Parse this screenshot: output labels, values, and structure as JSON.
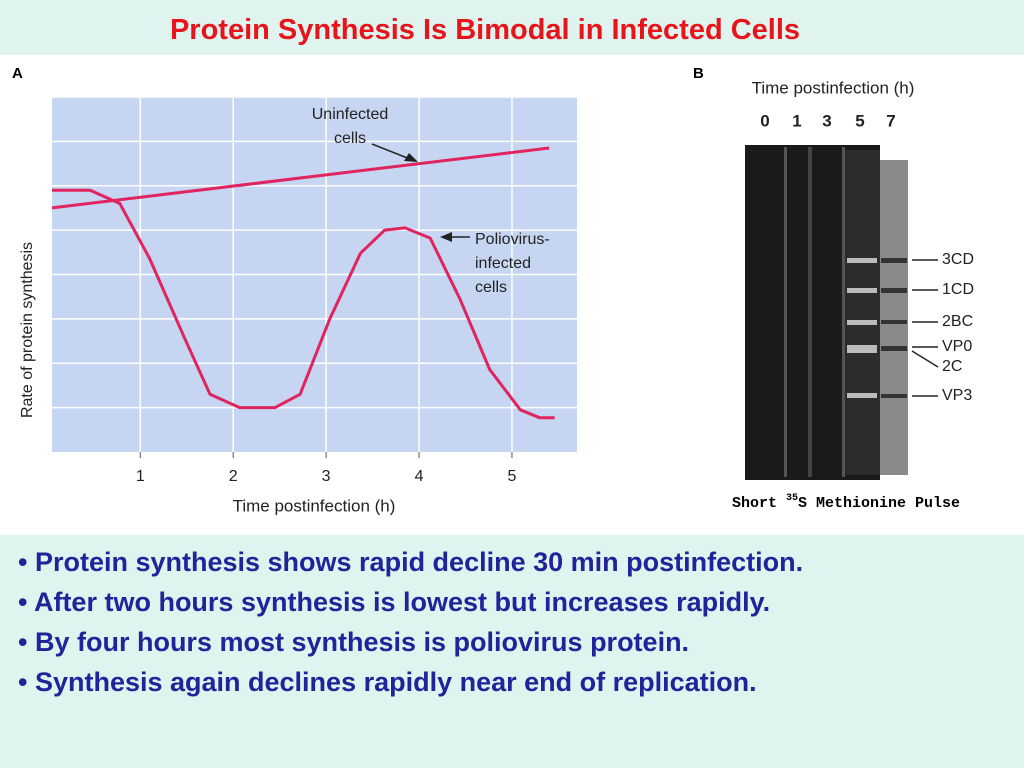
{
  "title": "Protein Synthesis Is Bimodal in Infected Cells",
  "panel_a_label": "A",
  "chart_data": {
    "type": "line",
    "xlabel": "Time postinfection (h)",
    "ylabel": "Rate of protein synthesis",
    "xlim": [
      0.05,
      5.7
    ],
    "ylim": [
      0,
      8
    ],
    "xticks": [
      1,
      2,
      3,
      4,
      5
    ],
    "ygrid": [
      1,
      2,
      3,
      4,
      5,
      6,
      7,
      8
    ],
    "grid": true,
    "series": [
      {
        "name": "Uninfected cells",
        "color": "#e0245e",
        "x": [
          0.05,
          5.4
        ],
        "values": [
          5.5,
          6.85
        ]
      },
      {
        "name": "Poliovirus-infected cells",
        "color": "#e0245e",
        "x": [
          0.05,
          0.46,
          0.78,
          1.1,
          1.48,
          1.75,
          2.07,
          2.45,
          2.72,
          3.04,
          3.37,
          3.63,
          3.85,
          4.12,
          4.44,
          4.76,
          5.09,
          5.3,
          5.46
        ],
        "values": [
          5.9,
          5.9,
          5.6,
          4.36,
          2.55,
          1.3,
          1.0,
          1.0,
          1.3,
          3.0,
          4.48,
          5.0,
          5.05,
          4.82,
          3.45,
          1.86,
          0.95,
          0.77,
          0.77
        ]
      }
    ],
    "annotations": [
      [
        "Uninfected",
        "cells"
      ],
      [
        "Poliovirus-",
        "infected",
        "cells"
      ]
    ]
  },
  "panel_b": {
    "label": "B",
    "axis_title": "Time postinfection (h)",
    "lanes": [
      "0",
      "1",
      "3",
      "5",
      "7"
    ],
    "bands": [
      "3CD",
      "1CD",
      "2BC",
      "VP0",
      "2C",
      "VP3"
    ],
    "caption": [
      "Short ",
      "35",
      "S Methionine Pulse"
    ]
  },
  "bullets": [
    "• Protein synthesis shows rapid decline 30 min postinfection.",
    "• After two hours synthesis is lowest but increases rapidly.",
    "• By four hours most synthesis is poliovirus protein.",
    "• Synthesis again declines rapidly near end of replication."
  ]
}
